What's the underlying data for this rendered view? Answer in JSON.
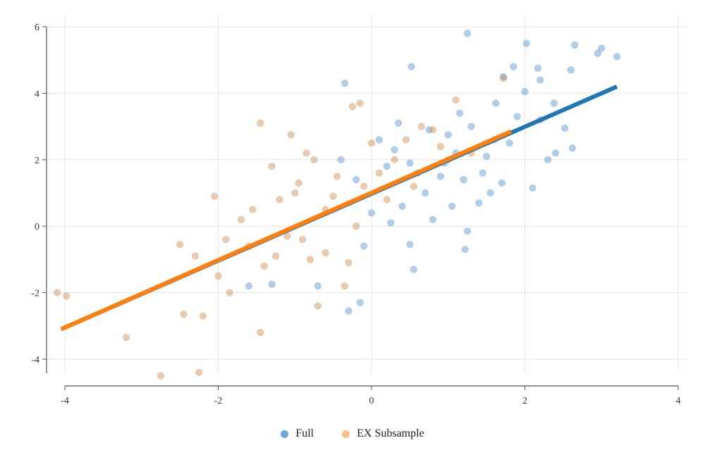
{
  "chart_data": {
    "type": "scatter",
    "title": "",
    "xlabel": "",
    "ylabel": "",
    "xlim": [
      -4.05,
      4
    ],
    "ylim": [
      -4.8,
      6.3
    ],
    "x_ticks": [
      -4,
      -2,
      0,
      2,
      4
    ],
    "y_ticks": [
      -4,
      -2,
      0,
      2,
      4,
      6
    ],
    "grid": true,
    "legend_position": "bottom",
    "series": [
      {
        "name": "Full",
        "color": "#6fa8d6",
        "marker": "circle",
        "points": [
          [
            1.25,
            5.8
          ],
          [
            2.02,
            5.5
          ],
          [
            2.65,
            5.45
          ],
          [
            3.0,
            5.35
          ],
          [
            2.95,
            5.2
          ],
          [
            3.2,
            5.1
          ],
          [
            0.52,
            4.8
          ],
          [
            2.17,
            4.75
          ],
          [
            1.85,
            4.8
          ],
          [
            2.2,
            4.4
          ],
          [
            1.72,
            4.5
          ],
          [
            -0.35,
            4.3
          ],
          [
            2.6,
            4.7
          ],
          [
            2.0,
            4.05
          ],
          [
            1.62,
            3.7
          ],
          [
            2.38,
            3.7
          ],
          [
            2.52,
            2.95
          ],
          [
            2.4,
            2.2
          ],
          [
            2.62,
            2.35
          ],
          [
            2.1,
            1.15
          ],
          [
            1.2,
            1.4
          ],
          [
            0.95,
            1.9
          ],
          [
            1.55,
            1.0
          ],
          [
            1.4,
            0.7
          ],
          [
            1.25,
            -0.15
          ],
          [
            0.55,
            -1.3
          ],
          [
            0.5,
            -0.55
          ],
          [
            1.22,
            -0.7
          ],
          [
            -0.3,
            -2.55
          ],
          [
            -0.15,
            -2.3
          ],
          [
            -1.6,
            -1.8
          ],
          [
            -1.3,
            -1.75
          ],
          [
            -0.7,
            -1.8
          ],
          [
            -0.1,
            -0.6
          ],
          [
            0.8,
            0.2
          ],
          [
            0.6,
            1.6
          ],
          [
            1.8,
            2.5
          ],
          [
            1.5,
            2.1
          ],
          [
            1.0,
            2.75
          ],
          [
            0.3,
            2.3
          ],
          [
            0.1,
            2.6
          ],
          [
            0.4,
            0.6
          ],
          [
            0.7,
            1.0
          ],
          [
            1.1,
            2.2
          ],
          [
            1.9,
            3.3
          ],
          [
            2.2,
            3.2
          ],
          [
            0.2,
            1.8
          ],
          [
            -0.2,
            1.4
          ],
          [
            0.9,
            1.5
          ],
          [
            1.3,
            3.0
          ],
          [
            0.5,
            1.9
          ],
          [
            1.6,
            2.6
          ],
          [
            2.3,
            2.0
          ],
          [
            0.0,
            0.4
          ],
          [
            0.75,
            2.9
          ],
          [
            1.45,
            1.6
          ],
          [
            1.05,
            0.6
          ],
          [
            0.35,
            3.1
          ],
          [
            -0.4,
            2.0
          ],
          [
            1.15,
            3.4
          ],
          [
            0.25,
            0.1
          ],
          [
            1.7,
            1.3
          ]
        ]
      },
      {
        "name": "EX Subsample",
        "color": "#f7c08a",
        "marker": "circle",
        "points": [
          [
            -4.1,
            -2.0
          ],
          [
            -3.98,
            -2.1
          ],
          [
            -3.2,
            -3.35
          ],
          [
            -2.75,
            -4.5
          ],
          [
            -2.25,
            -4.4
          ],
          [
            -2.45,
            -2.65
          ],
          [
            -2.2,
            -2.7
          ],
          [
            -1.45,
            -3.2
          ],
          [
            -1.45,
            3.1
          ],
          [
            -1.05,
            2.75
          ],
          [
            -0.85,
            2.2
          ],
          [
            -0.25,
            3.6
          ],
          [
            -0.15,
            3.7
          ],
          [
            1.1,
            3.8
          ],
          [
            1.72,
            4.45
          ],
          [
            -2.05,
            0.9
          ],
          [
            -2.5,
            -0.55
          ],
          [
            -2.3,
            -0.9
          ],
          [
            -1.85,
            -2.0
          ],
          [
            -1.6,
            -0.6
          ],
          [
            -1.2,
            0.8
          ],
          [
            -0.9,
            -0.4
          ],
          [
            -0.6,
            0.5
          ],
          [
            -0.35,
            -1.8
          ],
          [
            -0.7,
            -2.4
          ],
          [
            -0.45,
            1.5
          ],
          [
            -0.1,
            1.2
          ],
          [
            0.3,
            2.0
          ],
          [
            0.65,
            3.0
          ],
          [
            1.0,
            2.0
          ],
          [
            -1.4,
            -1.2
          ],
          [
            -1.0,
            1.0
          ],
          [
            -0.8,
            -1.0
          ],
          [
            -1.7,
            0.2
          ],
          [
            -2.0,
            -1.5
          ],
          [
            -1.3,
            1.8
          ],
          [
            -0.5,
            0.9
          ],
          [
            -0.2,
            0.0
          ],
          [
            0.1,
            1.6
          ],
          [
            0.45,
            2.6
          ],
          [
            0.9,
            2.4
          ],
          [
            1.3,
            2.2
          ],
          [
            -0.95,
            1.3
          ],
          [
            -0.6,
            -0.8
          ],
          [
            -1.55,
            0.5
          ],
          [
            -1.1,
            -0.3
          ],
          [
            0.2,
            0.8
          ],
          [
            0.55,
            1.2
          ],
          [
            -0.75,
            2.0
          ],
          [
            -1.25,
            -0.9
          ],
          [
            -1.9,
            -0.4
          ],
          [
            -0.3,
            -1.1
          ],
          [
            0.0,
            2.5
          ],
          [
            0.8,
            2.9
          ]
        ]
      }
    ],
    "fit_lines": [
      {
        "series": "Full",
        "color": "#1f77b4",
        "x1": -4.0,
        "y1": -3.05,
        "x2": 3.2,
        "y2": 4.2
      },
      {
        "series": "EX Subsample",
        "color": "#ff7f0e",
        "x1": -4.05,
        "y1": -3.1,
        "x2": 1.82,
        "y2": 2.85
      }
    ]
  },
  "legend": {
    "items": [
      {
        "label": "Full",
        "color": "#6fa8d6"
      },
      {
        "label": "EX Subsample",
        "color": "#f7c08a"
      }
    ]
  }
}
